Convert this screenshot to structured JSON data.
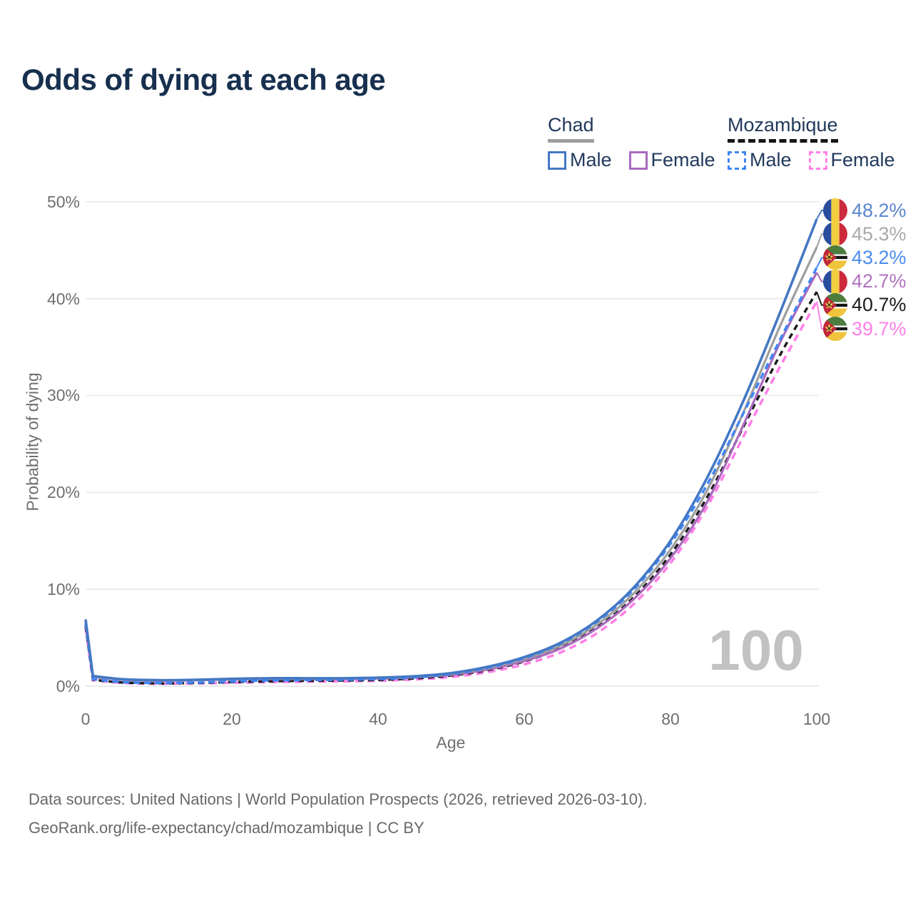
{
  "title": "Odds of dying at each age",
  "legend": {
    "groups": [
      {
        "country": "Chad",
        "style": "solid",
        "items": [
          {
            "label": "Male"
          },
          {
            "label": "Female"
          }
        ]
      },
      {
        "country": "Mozambique",
        "style": "dashed",
        "items": [
          {
            "label": "Male"
          },
          {
            "label": "Female"
          }
        ]
      }
    ]
  },
  "footer": {
    "line1": "Data sources: United Nations | World Population Prospects (2026, retrieved 2026-03-10).",
    "line2": "GeoRank.org/life-expectancy/chad/mozambique | CC BY"
  },
  "chart_data": {
    "type": "line",
    "title": "Odds of dying at each age",
    "xlabel": "Age",
    "ylabel": "Probability of dying",
    "xlim": [
      0,
      100
    ],
    "ylim": [
      0,
      50
    ],
    "x_ticks": [
      0,
      20,
      40,
      60,
      80,
      100
    ],
    "y_ticks": [
      0,
      10,
      20,
      30,
      40,
      50
    ],
    "y_tick_format": "percent",
    "grid": "horizontal",
    "legend_position": "top-right",
    "watermark": "100",
    "x": [
      0,
      1,
      5,
      10,
      15,
      20,
      25,
      30,
      35,
      40,
      45,
      50,
      55,
      60,
      65,
      70,
      75,
      80,
      85,
      90,
      95,
      100
    ],
    "series": [
      {
        "id": "chad-male",
        "name": "Chad Male",
        "country": "Chad",
        "sex": "Male",
        "dash": "solid",
        "color": "#4478c4",
        "label_color": "#5b87cf",
        "flag": "chad",
        "end_label": "48.2%",
        "values": [
          6.9,
          1.05,
          0.72,
          0.62,
          0.66,
          0.76,
          0.82,
          0.82,
          0.82,
          0.88,
          1.02,
          1.35,
          2.0,
          3.0,
          4.5,
          6.8,
          10.2,
          15.0,
          21.5,
          29.5,
          38.6,
          48.2
        ]
      },
      {
        "id": "chad-all",
        "name": "Chad",
        "country": "Chad",
        "sex": "All",
        "dash": "solid",
        "color": "#9e9e9e",
        "label_color": "#a9a9a9",
        "flag": "chad",
        "end_label": "45.3%",
        "values": [
          6.7,
          1.0,
          0.69,
          0.59,
          0.63,
          0.72,
          0.78,
          0.78,
          0.79,
          0.84,
          0.97,
          1.27,
          1.87,
          2.8,
          4.2,
          6.4,
          9.6,
          14.1,
          20.2,
          28.3,
          37.2,
          45.3
        ]
      },
      {
        "id": "chad-female",
        "name": "Chad Female",
        "country": "Chad",
        "sex": "Female",
        "dash": "solid",
        "color": "#a96abc",
        "label_color": "#b273c0",
        "flag": "chad",
        "end_label": "42.7%",
        "values": [
          6.5,
          0.96,
          0.66,
          0.56,
          0.6,
          0.68,
          0.73,
          0.73,
          0.75,
          0.79,
          0.92,
          1.18,
          1.72,
          2.6,
          3.9,
          6.0,
          9.0,
          13.2,
          19.0,
          27.0,
          35.5,
          42.7
        ]
      },
      {
        "id": "mozambique-male",
        "name": "Mozambique Male",
        "country": "Mozambique",
        "sex": "Male",
        "dash": "dashed",
        "color": "#3f86f4",
        "label_color": "#4a8cf0",
        "flag": "mozambique",
        "end_label": "43.2%",
        "values": [
          6.4,
          0.72,
          0.42,
          0.32,
          0.37,
          0.48,
          0.58,
          0.63,
          0.66,
          0.73,
          0.9,
          1.25,
          1.9,
          2.9,
          4.4,
          6.7,
          10.0,
          14.7,
          20.8,
          28.2,
          35.8,
          43.2
        ]
      },
      {
        "id": "mozambique-all",
        "name": "Mozambique",
        "country": "Mozambique",
        "sex": "All",
        "dash": "dashed",
        "color": "#1c1c1c",
        "label_color": "#1c1c1c",
        "flag": "mozambique",
        "end_label": "40.7%",
        "values": [
          6.2,
          0.66,
          0.38,
          0.29,
          0.33,
          0.42,
          0.5,
          0.55,
          0.58,
          0.64,
          0.8,
          1.1,
          1.65,
          2.55,
          3.95,
          6.1,
          9.2,
          13.6,
          19.5,
          26.8,
          34.2,
          40.7
        ]
      },
      {
        "id": "mozambique-female",
        "name": "Mozambique Female",
        "country": "Mozambique",
        "sex": "Female",
        "dash": "dashed",
        "color": "#ff80e8",
        "label_color": "#ff80e8",
        "flag": "mozambique",
        "end_label": "39.7%",
        "values": [
          6.0,
          0.61,
          0.34,
          0.26,
          0.29,
          0.35,
          0.42,
          0.46,
          0.5,
          0.56,
          0.7,
          0.95,
          1.45,
          2.25,
          3.5,
          5.5,
          8.5,
          12.7,
          18.5,
          25.8,
          33.0,
          39.7
        ]
      }
    ]
  }
}
